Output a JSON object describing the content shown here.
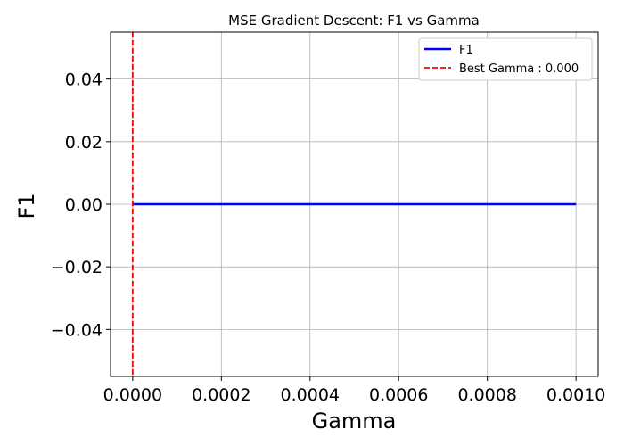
{
  "chart_data": {
    "type": "line",
    "title": "MSE Gradient Descent: F1 vs Gamma",
    "xlabel": "Gamma",
    "ylabel": "F1",
    "xlim": [
      -5e-05,
      0.00105
    ],
    "ylim": [
      -0.055,
      0.055
    ],
    "xticks": [
      0.0,
      0.0002,
      0.0004,
      0.0006,
      0.0008,
      0.001
    ],
    "xtick_labels": [
      "0.0000",
      "0.0002",
      "0.0004",
      "0.0006",
      "0.0008",
      "0.0010"
    ],
    "yticks": [
      0.04,
      0.02,
      0.0,
      -0.02,
      -0.04
    ],
    "ytick_labels": [
      "0.04",
      "0.02",
      "0.00",
      "−0.02",
      "−0.04"
    ],
    "grid": true,
    "legend_position": "top-right",
    "series": [
      {
        "name": "F1",
        "color": "#0000ff",
        "style": "solid",
        "x": [
          0.0,
          0.0002,
          0.0004,
          0.0006,
          0.0008,
          0.001
        ],
        "values": [
          0.0,
          0.0,
          0.0,
          0.0,
          0.0,
          0.0
        ]
      }
    ],
    "vlines": [
      {
        "name": "Best Gamma : 0.000",
        "color": "#ff0000",
        "style": "dashed",
        "x": 0.0
      }
    ]
  }
}
